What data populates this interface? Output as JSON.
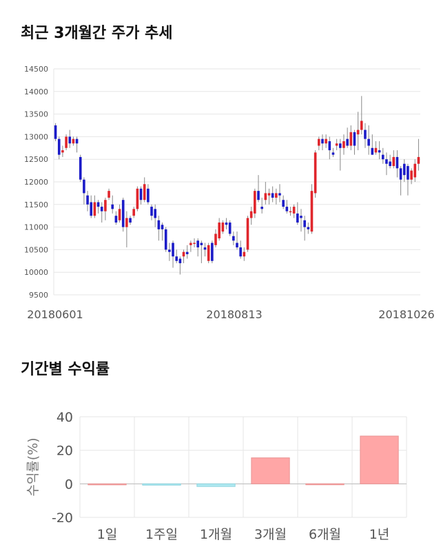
{
  "sections": {
    "price_title": "최근 3개월간 주가 추세",
    "return_title": "기간별 수익률"
  },
  "colors": {
    "up": "#e0262c",
    "down": "#1c1cc8",
    "positive_bar": "#ffa6a6",
    "negative_bar": "#aee8f0",
    "grid": "#e6e6e6",
    "axis_text": "#555555"
  },
  "chart_data": [
    {
      "type": "candlestick",
      "title": "최근 3개월간 주가 추세",
      "ylim": [
        9500,
        14500
      ],
      "y_ticks": [
        9500,
        10000,
        10500,
        11000,
        11500,
        12000,
        12500,
        13000,
        13500,
        14000,
        14500
      ],
      "x_labels": [
        "20180601",
        "20180813",
        "20181026"
      ],
      "grid": true,
      "candles": [
        [
          13250,
          12950,
          13300,
          12900
        ],
        [
          12950,
          12600,
          13000,
          12500
        ],
        [
          12650,
          12700,
          12800,
          12550
        ],
        [
          12750,
          13000,
          13050,
          12700
        ],
        [
          13000,
          12850,
          13150,
          12750
        ],
        [
          12850,
          12950,
          13000,
          12800
        ],
        [
          12950,
          12850,
          13000,
          12650
        ],
        [
          12550,
          12050,
          12600,
          12000
        ],
        [
          12050,
          11750,
          12100,
          11500
        ],
        [
          11700,
          11500,
          11800,
          11350
        ],
        [
          11550,
          11250,
          11700,
          11200
        ],
        [
          11250,
          11550,
          11700,
          11200
        ],
        [
          11550,
          11450,
          11600,
          11300
        ],
        [
          11450,
          11350,
          11550,
          11100
        ],
        [
          11350,
          11600,
          11650,
          11150
        ],
        [
          11650,
          11800,
          11850,
          11600
        ],
        [
          11500,
          11400,
          11700,
          11300
        ],
        [
          11250,
          11100,
          11350,
          11050
        ],
        [
          11150,
          11400,
          11500,
          11100
        ],
        [
          11600,
          11000,
          11650,
          10900
        ],
        [
          11000,
          11200,
          11350,
          10550
        ],
        [
          11200,
          11100,
          11250,
          11050
        ],
        [
          11250,
          11400,
          11450,
          11200
        ],
        [
          11400,
          11850,
          11900,
          11350
        ],
        [
          11850,
          11600,
          11900,
          11500
        ],
        [
          11600,
          11950,
          12100,
          11550
        ],
        [
          11850,
          11550,
          11950,
          11500
        ],
        [
          11450,
          11250,
          11500,
          11150
        ],
        [
          11400,
          11200,
          11500,
          11000
        ],
        [
          11150,
          10950,
          11250,
          10700
        ],
        [
          11050,
          10950,
          11100,
          10700
        ],
        [
          10950,
          10500,
          11000,
          10450
        ],
        [
          10500,
          10450,
          10650,
          10250
        ],
        [
          10650,
          10350,
          10700,
          10100
        ],
        [
          10350,
          10250,
          10500,
          10200
        ],
        [
          10300,
          10200,
          10350,
          9950
        ],
        [
          10350,
          10450,
          10500,
          10200
        ],
        [
          10450,
          10400,
          10600,
          10300
        ],
        [
          10600,
          10650,
          10700,
          10450
        ],
        [
          10650,
          10650,
          10750,
          10550
        ],
        [
          10700,
          10550,
          10750,
          10350
        ],
        [
          10650,
          10600,
          10700,
          10200
        ],
        [
          10550,
          10500,
          10650,
          10350
        ],
        [
          10250,
          10600,
          10650,
          10200
        ],
        [
          10650,
          10250,
          10700,
          10200
        ],
        [
          10600,
          10850,
          10950,
          10550
        ],
        [
          10750,
          11100,
          11200,
          10700
        ],
        [
          10900,
          11100,
          11150,
          10850
        ],
        [
          11100,
          11050,
          11200,
          10950
        ],
        [
          11100,
          10850,
          11150,
          10800
        ],
        [
          10800,
          10700,
          10900,
          10600
        ],
        [
          10650,
          10550,
          10900,
          10500
        ],
        [
          10550,
          10350,
          10700,
          10300
        ],
        [
          10350,
          10450,
          10550,
          10250
        ],
        [
          10500,
          11200,
          11250,
          10450
        ],
        [
          11200,
          11350,
          11450,
          11050
        ],
        [
          11300,
          11800,
          11850,
          11200
        ],
        [
          11800,
          11600,
          12150,
          11550
        ],
        [
          11450,
          11400,
          11650,
          11300
        ],
        [
          11600,
          11750,
          12000,
          11500
        ],
        [
          11700,
          11750,
          11850,
          11500
        ],
        [
          11750,
          11650,
          11900,
          11550
        ],
        [
          11650,
          11750,
          11850,
          11500
        ],
        [
          11750,
          11700,
          11950,
          11550
        ],
        [
          11600,
          11450,
          11700,
          11400
        ],
        [
          11450,
          11350,
          11600,
          11300
        ],
        [
          11350,
          11350,
          11450,
          11250
        ],
        [
          11300,
          11450,
          11500,
          11200
        ],
        [
          11300,
          11100,
          11550,
          11050
        ],
        [
          11250,
          11200,
          11400,
          10900
        ],
        [
          11150,
          11000,
          11250,
          10700
        ],
        [
          11000,
          10950,
          11100,
          10850
        ],
        [
          10900,
          11800,
          11950,
          10850
        ],
        [
          11750,
          12650,
          12700,
          11650
        ],
        [
          12800,
          12950,
          13000,
          12700
        ],
        [
          12950,
          12850,
          13050,
          12700
        ],
        [
          12850,
          12950,
          13050,
          12750
        ],
        [
          12900,
          12700,
          13000,
          12500
        ],
        [
          12650,
          12600,
          12750,
          12550
        ],
        [
          12800,
          12850,
          12950,
          12700
        ],
        [
          12850,
          12750,
          12950,
          12250
        ],
        [
          12750,
          12900,
          13050,
          12600
        ],
        [
          12950,
          12800,
          13200,
          12750
        ],
        [
          12800,
          13100,
          13250,
          12700
        ],
        [
          13100,
          12800,
          13150,
          12600
        ],
        [
          13050,
          13150,
          13550,
          12700
        ],
        [
          13150,
          13350,
          13900,
          13050
        ],
        [
          13150,
          12950,
          13300,
          12750
        ],
        [
          12950,
          12800,
          13250,
          12600
        ],
        [
          12750,
          12600,
          13050,
          12600
        ],
        [
          12650,
          12750,
          12900,
          12600
        ],
        [
          12700,
          12650,
          12900,
          12500
        ],
        [
          12600,
          12500,
          12750,
          12400
        ],
        [
          12500,
          12400,
          12650,
          12150
        ],
        [
          12450,
          12350,
          12600,
          12300
        ],
        [
          12350,
          12550,
          12700,
          12300
        ],
        [
          12550,
          12300,
          12700,
          12100
        ],
        [
          12300,
          12050,
          12350,
          11700
        ],
        [
          12400,
          12150,
          12500,
          12000
        ],
        [
          12350,
          12050,
          12400,
          11700
        ],
        [
          12050,
          12250,
          12300,
          11950
        ],
        [
          12100,
          12400,
          12500,
          12000
        ],
        [
          12400,
          12550,
          12950,
          12250
        ]
      ]
    },
    {
      "type": "bar",
      "title": "기간별 수익률",
      "ylabel": "수익률(%)",
      "ylim": [
        -20,
        40
      ],
      "y_ticks": [
        -20,
        0,
        20,
        40
      ],
      "categories": [
        "1일",
        "1주일",
        "1개월",
        "3개월",
        "6개월",
        "1년"
      ],
      "values": [
        0,
        -0.8,
        -1.6,
        15.5,
        0.05,
        28.5
      ],
      "grid": true
    }
  ]
}
